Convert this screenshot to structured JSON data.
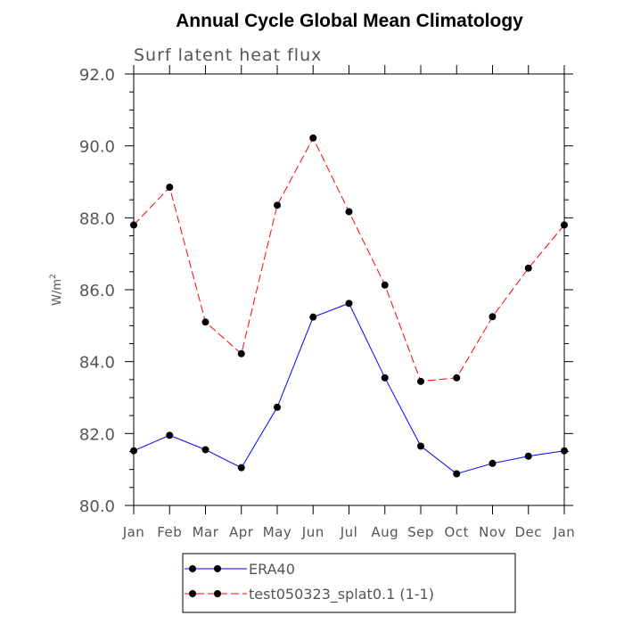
{
  "chart_data": {
    "type": "line",
    "title": "Annual Cycle Global Mean Climatology",
    "subtitle": "Surf latent heat flux",
    "xlabel": "",
    "ylabel": "W/m",
    "ylabel_superscript": "2",
    "categories": [
      "Jan",
      "Feb",
      "Mar",
      "Apr",
      "May",
      "Jun",
      "Jul",
      "Aug",
      "Sep",
      "Oct",
      "Nov",
      "Dec",
      "Jan"
    ],
    "ylim": [
      80.0,
      92.0
    ],
    "yticks": [
      "80.0",
      "82.0",
      "84.0",
      "86.0",
      "88.0",
      "90.0",
      "92.0"
    ],
    "grid": false,
    "legend_position": "bottom",
    "series": [
      {
        "name": "ERA40",
        "color": "#0000ff",
        "dash": "solid",
        "values": [
          81.52,
          81.95,
          81.55,
          81.05,
          82.73,
          85.24,
          85.62,
          83.55,
          81.65,
          80.88,
          81.17,
          81.37,
          81.52
        ]
      },
      {
        "name": "test050323_splat0.1 (1-1)",
        "color": "#ff0000",
        "dash": "dashed",
        "values": [
          87.8,
          88.85,
          85.1,
          84.22,
          88.35,
          90.22,
          88.17,
          86.13,
          83.45,
          83.55,
          85.25,
          86.6,
          87.8
        ]
      }
    ]
  }
}
